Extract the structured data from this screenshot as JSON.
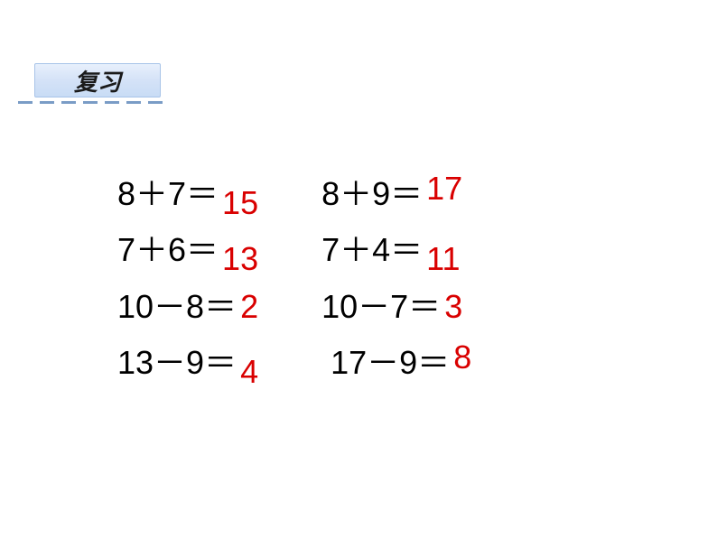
{
  "header": {
    "title": "复习"
  },
  "colors": {
    "equation_text": "#000000",
    "answer_text": "#d90000",
    "tab_gradient_top": "#e8f0fc",
    "tab_gradient_bottom": "#c8dcf5",
    "dash_color": "#7a9cc6",
    "background": "#ffffff"
  },
  "typography": {
    "equation_fontsize": 36,
    "header_fontsize": 26,
    "header_font": "KaiTi"
  },
  "equations": {
    "left": [
      {
        "expr": "8＋7＝",
        "answer": "15"
      },
      {
        "expr": "7＋6＝",
        "answer": "13"
      },
      {
        "expr": "10－8＝",
        "answer": "2"
      },
      {
        "expr": "13－9＝",
        "answer": "4"
      }
    ],
    "right": [
      {
        "expr": "8＋9＝",
        "answer": "17"
      },
      {
        "expr": "7＋4＝",
        "answer": "11"
      },
      {
        "expr": "10－7＝",
        "answer": "3"
      },
      {
        "expr": " 17－9＝",
        "answer": "8"
      }
    ]
  }
}
